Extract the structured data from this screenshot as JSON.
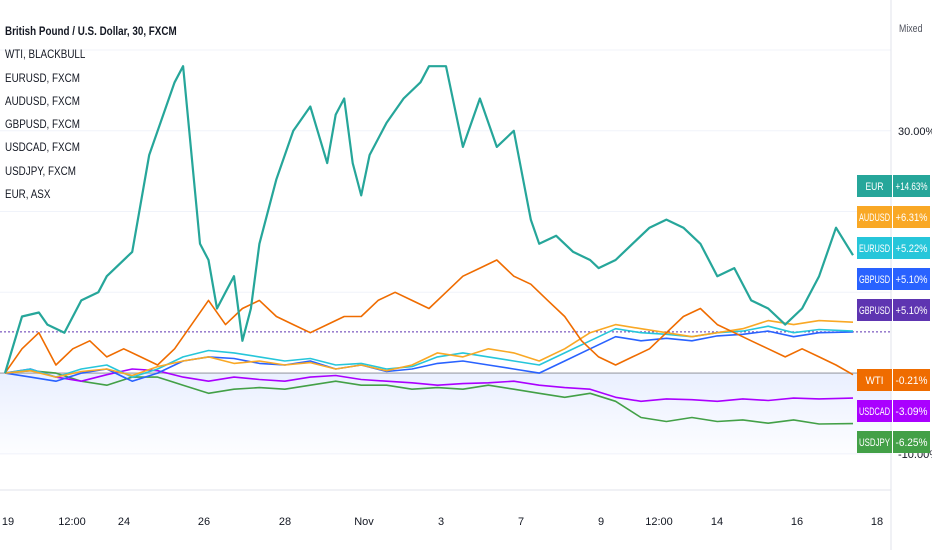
{
  "scale_mode_label": "Mixed",
  "legend": [
    {
      "name": "British Pound / U.S. Dollar, 30, FXCM",
      "bold": true
    },
    {
      "name": "WTI, BLACKBULL"
    },
    {
      "name": "EURUSD, FXCM"
    },
    {
      "name": "AUDUSD, FXCM"
    },
    {
      "name": "GBPUSD, FXCM"
    },
    {
      "name": "USDCAD, FXCM"
    },
    {
      "name": "USDJPY, FXCM"
    },
    {
      "name": "EUR, ASX"
    }
  ],
  "chart_data": {
    "type": "line",
    "xlabel": "",
    "ylabel": "",
    "x_ticks": [
      "19",
      "12:00",
      "24",
      "26",
      "28",
      "Nov",
      "3",
      "7",
      "9",
      "12:00",
      "14",
      "16",
      "18"
    ],
    "y_ticks": [
      "30.00%",
      "-10.00%"
    ],
    "ylim": [
      -12,
      40
    ],
    "y_unit": "%",
    "series": [
      {
        "name": "EUR",
        "color": "#26a69a",
        "x": [
          0,
          2,
          4,
          5,
          7,
          9,
          11,
          12,
          15,
          17,
          20,
          21,
          23,
          24,
          25,
          26,
          27,
          28,
          29,
          30,
          32,
          34,
          36,
          38,
          39,
          40,
          41,
          42,
          43,
          45,
          47,
          49,
          50,
          52,
          54,
          56,
          58,
          60,
          62,
          63,
          65,
          67,
          69,
          70,
          72,
          74,
          76,
          78,
          80,
          82,
          84,
          86,
          88,
          90,
          92,
          94,
          96,
          98,
          100
        ],
        "y": [
          0,
          7,
          7.5,
          6,
          5,
          9,
          10,
          12,
          15,
          27,
          36,
          38,
          16,
          14,
          8,
          10,
          12,
          4,
          8,
          16,
          24,
          30,
          33,
          26,
          32,
          34,
          26,
          22,
          27,
          31,
          34,
          36,
          38,
          38,
          28,
          34,
          28,
          30,
          19,
          16,
          17,
          15,
          14,
          13,
          14,
          16,
          18,
          19,
          18,
          16,
          12,
          13,
          9,
          8,
          6,
          8,
          12,
          18,
          14.6
        ]
      },
      {
        "name": "WTI",
        "color": "#ef6c00",
        "x": [
          0,
          2,
          4,
          6,
          8,
          10,
          12,
          14,
          16,
          18,
          20,
          22,
          24,
          26,
          28,
          30,
          32,
          34,
          36,
          38,
          40,
          42,
          44,
          46,
          48,
          50,
          52,
          54,
          56,
          58,
          60,
          62,
          64,
          66,
          68,
          70,
          72,
          74,
          76,
          78,
          80,
          82,
          84,
          86,
          88,
          90,
          92,
          94,
          96,
          98,
          100
        ],
        "y": [
          0,
          3,
          5,
          1,
          3,
          4,
          2,
          3,
          2,
          1,
          3,
          6,
          9,
          6,
          8,
          9,
          7,
          6,
          5,
          6,
          7,
          7,
          9,
          10,
          9,
          8,
          10,
          12,
          13,
          14,
          12,
          11,
          9,
          7,
          4,
          2,
          1,
          2,
          3,
          5,
          7,
          8,
          6,
          5,
          4,
          3,
          2,
          3,
          2,
          1,
          -0.2
        ]
      },
      {
        "name": "AUDUSD",
        "color": "#f9a825",
        "x": [
          0,
          3,
          6,
          9,
          12,
          15,
          18,
          21,
          24,
          27,
          30,
          33,
          36,
          39,
          42,
          45,
          48,
          51,
          54,
          57,
          60,
          63,
          66,
          69,
          72,
          75,
          78,
          81,
          84,
          87,
          90,
          93,
          96,
          100
        ],
        "y": [
          0,
          0.3,
          -0.5,
          0.2,
          0.5,
          -0.3,
          0.8,
          1.5,
          2,
          1.2,
          1.5,
          1,
          1.3,
          0.5,
          1,
          0.3,
          1,
          2.5,
          2,
          3,
          2.5,
          1.5,
          3,
          5,
          6,
          5.5,
          5,
          4.5,
          5,
          5.5,
          6.5,
          6,
          6.5,
          6.3
        ]
      },
      {
        "name": "EURUSD",
        "color": "#26c6da",
        "x": [
          0,
          3,
          6,
          9,
          12,
          15,
          18,
          21,
          24,
          27,
          30,
          33,
          36,
          39,
          42,
          45,
          48,
          51,
          54,
          57,
          60,
          63,
          66,
          69,
          72,
          75,
          78,
          81,
          84,
          87,
          90,
          93,
          96,
          100
        ],
        "y": [
          0,
          0.5,
          -0.5,
          0.5,
          1,
          -0.5,
          0.5,
          2,
          2.8,
          2.5,
          2,
          1.5,
          1.8,
          1,
          1.2,
          0.5,
          0.8,
          2,
          2.5,
          2,
          1.5,
          1,
          2.5,
          4,
          5.5,
          5,
          4.8,
          4.5,
          5,
          5.2,
          5.8,
          5,
          5.4,
          5.2
        ]
      },
      {
        "name": "GBPUSD",
        "color": "#2962ff",
        "x": [
          0,
          3,
          6,
          9,
          12,
          15,
          18,
          21,
          24,
          27,
          30,
          33,
          36,
          39,
          42,
          45,
          48,
          51,
          54,
          57,
          60,
          63,
          66,
          69,
          72,
          75,
          78,
          81,
          84,
          87,
          90,
          93,
          96,
          100
        ],
        "y": [
          0,
          -0.5,
          -1,
          0,
          0.5,
          -1,
          0,
          1.5,
          2,
          1.8,
          1.2,
          1,
          1.5,
          0.5,
          1,
          0.2,
          0.5,
          1.2,
          1.5,
          1,
          0.5,
          0,
          1.5,
          3,
          4.5,
          4,
          4.3,
          4,
          4.6,
          4.8,
          5.2,
          4.5,
          5,
          5.1
        ]
      },
      {
        "name": "GBPUSD",
        "color": "#5e35b1",
        "type": "price-line",
        "y": [
          5.1
        ]
      },
      {
        "name": "USDCAD",
        "color": "#aa00ff",
        "x": [
          0,
          3,
          6,
          9,
          12,
          15,
          18,
          21,
          24,
          27,
          30,
          33,
          36,
          39,
          42,
          45,
          48,
          51,
          54,
          57,
          60,
          63,
          66,
          69,
          72,
          75,
          78,
          81,
          84,
          87,
          90,
          93,
          96,
          100
        ],
        "y": [
          0,
          0.5,
          -0.5,
          -1,
          -0.2,
          0.5,
          0.3,
          -0.5,
          -1,
          -0.5,
          -0.8,
          -1,
          -0.5,
          -0.3,
          -0.8,
          -1,
          -1.2,
          -1.5,
          -1.3,
          -1.2,
          -1,
          -1.5,
          -1.8,
          -2,
          -3,
          -3.5,
          -3.2,
          -3.3,
          -3.5,
          -3.2,
          -3.4,
          -3.1,
          -3.2,
          -3.1
        ]
      },
      {
        "name": "USDJPY",
        "color": "#43a047",
        "x": [
          0,
          3,
          6,
          9,
          12,
          15,
          18,
          21,
          24,
          27,
          30,
          33,
          36,
          39,
          42,
          45,
          48,
          51,
          54,
          57,
          60,
          63,
          66,
          69,
          72,
          75,
          78,
          81,
          84,
          87,
          90,
          93,
          96,
          100
        ],
        "y": [
          0,
          0.3,
          0,
          -1,
          -1.5,
          -0.5,
          -0.5,
          -1.5,
          -2.5,
          -2,
          -1.8,
          -2,
          -1.5,
          -1,
          -1.5,
          -1.5,
          -2,
          -1.8,
          -2,
          -1.5,
          -2,
          -2.5,
          -3,
          -2.5,
          -3.5,
          -5.5,
          -6,
          -5.5,
          -6,
          -5.8,
          -6.2,
          -5.8,
          -6.3,
          -6.25
        ]
      }
    ],
    "badges": [
      {
        "label": "EUR",
        "value": "+14.63%",
        "color": "#26a69a"
      },
      {
        "label": "AUDUSD",
        "value": "+6.31%",
        "color": "#f9a825"
      },
      {
        "label": "EURUSD",
        "value": "+5.22%",
        "color": "#26c6da"
      },
      {
        "label": "GBPUSD",
        "value": "+5.10%",
        "color": "#2962ff"
      },
      {
        "label": "GBPUSD",
        "value": "+5.10%",
        "color": "#5e35b1"
      },
      {
        "label": "WTI",
        "value": "-0.21%",
        "color": "#ef6c00"
      },
      {
        "label": "USDCAD",
        "value": "-3.09%",
        "color": "#aa00ff"
      },
      {
        "label": "USDJPY",
        "value": "-6.25%",
        "color": "#43a047"
      }
    ],
    "grid": true,
    "legend_position": "top-left"
  }
}
